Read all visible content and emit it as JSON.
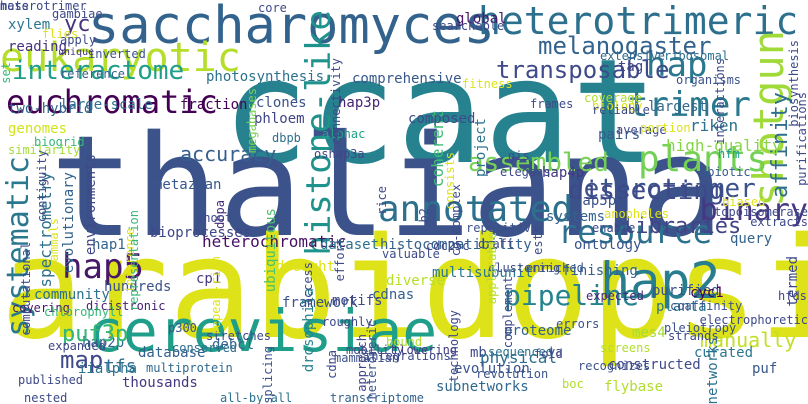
{
  "words": [
    {
      "text": "ccaat",
      "color": "#26828e"
    },
    {
      "text": "thaliana",
      "color": "#3b528b"
    },
    {
      "text": "arabidopsis",
      "color": "#dde318"
    },
    {
      "text": "saccharomyces",
      "color": "#33638d"
    },
    {
      "text": "cerevisiae",
      "color": "#1f9e89"
    },
    {
      "text": "heterotrimeric",
      "color": "#2d708e"
    },
    {
      "text": "eukaryotic",
      "color": "#b5de2b"
    },
    {
      "text": "euchromatic",
      "color": "#440154"
    },
    {
      "text": "interactome",
      "color": "#1f9e89"
    },
    {
      "text": "hap5",
      "color": "#48186a"
    },
    {
      "text": "hap2",
      "color": "#287d8e"
    },
    {
      "text": "hap",
      "color": "#2a788e"
    },
    {
      "text": "trimer",
      "color": "#2a788e"
    },
    {
      "text": "melanogaster",
      "color": "#33638d"
    },
    {
      "text": "transposable",
      "color": "#3e4a89"
    },
    {
      "text": "shotgun",
      "color": "#a0da39"
    },
    {
      "text": "annotated",
      "color": "#2d708e"
    },
    {
      "text": "resource",
      "color": "#2c728e"
    },
    {
      "text": "plants",
      "color": "#73d056"
    },
    {
      "text": "pipeline",
      "color": "#25838e"
    },
    {
      "text": "binary",
      "color": "#453781"
    },
    {
      "text": "heterotrimer",
      "color": "#3b528b"
    },
    {
      "text": "assembled",
      "color": "#75d054"
    },
    {
      "text": "systematic",
      "color": "#2a788e"
    },
    {
      "text": "histone-like",
      "color": "#20928c"
    },
    {
      "text": "heterochromatic",
      "color": "#471063"
    },
    {
      "text": "accuracy",
      "color": "#355f8d"
    },
    {
      "text": "libraries",
      "color": "#414487"
    },
    {
      "text": "puf3p",
      "color": "#35b779"
    },
    {
      "text": "map",
      "color": "#3e4989"
    },
    {
      "text": "manually",
      "color": "#c2df23"
    },
    {
      "text": "affinity",
      "color": "#2e6f8e"
    },
    {
      "text": "hap3p",
      "color": "#482475"
    },
    {
      "text": "clones",
      "color": "#3b528b"
    },
    {
      "text": "phloem",
      "color": "#414487"
    },
    {
      "text": "dbpb",
      "color": "#2d708e"
    },
    {
      "text": "alphac",
      "color": "#20a386"
    },
    {
      "text": "oshap3a",
      "color": "#404688"
    },
    {
      "text": "yc",
      "color": "#46337e"
    },
    {
      "text": "riken",
      "color": "#2c728e"
    },
    {
      "text": "high-quality",
      "color": "#86d549"
    },
    {
      "text": "largest",
      "color": "#31688e"
    },
    {
      "text": "pairs",
      "color": "#375b8d"
    },
    {
      "text": "coherent",
      "color": "#3dbc74"
    },
    {
      "text": "project",
      "color": "#2c738e"
    },
    {
      "text": "composed",
      "color": "#3e4a89"
    },
    {
      "text": "photosynthesis",
      "color": "#2c728e"
    },
    {
      "text": "comprehensive",
      "color": "#38588c"
    },
    {
      "text": "megabases",
      "color": "#7ad151"
    },
    {
      "text": "fraction",
      "color": "#440154"
    },
    {
      "text": "genomes",
      "color": "#d2e21b"
    },
    {
      "text": "two-hybrid",
      "color": "#33638d"
    },
    {
      "text": "large-scale",
      "color": "#2e6e8e"
    },
    {
      "text": "reading",
      "color": "#46327e"
    },
    {
      "text": "inverted",
      "color": "#3b528b"
    },
    {
      "text": "unique",
      "color": "#46337e"
    },
    {
      "text": "xylem",
      "color": "#2a778e"
    },
    {
      "text": "reference",
      "color": "#355f8d"
    },
    {
      "text": "global",
      "color": "#481769"
    },
    {
      "text": "tag",
      "color": "#404688"
    },
    {
      "text": "organisms",
      "color": "#3b528b"
    },
    {
      "text": "ribosomal",
      "color": "#2d708e"
    },
    {
      "text": "extensive",
      "color": "#31688e"
    },
    {
      "text": "spectrometry",
      "color": "#2d708e"
    },
    {
      "text": "evolutionary",
      "color": "#33638d"
    },
    {
      "text": "metazoan",
      "color": "#38598c"
    },
    {
      "text": "bioprocesses",
      "color": "#3f4788"
    },
    {
      "text": "dbpa",
      "color": "#472d7b"
    },
    {
      "text": "ubiquitous",
      "color": "#4ac16d"
    },
    {
      "text": "dataset",
      "color": "#2c728e"
    },
    {
      "text": "histocompatibility",
      "color": "#33638d"
    },
    {
      "text": "hap4p",
      "color": "#453781"
    },
    {
      "text": "hap5p",
      "color": "#3b528b"
    },
    {
      "text": "systems",
      "color": "#34618d"
    },
    {
      "text": "ontology",
      "color": "#3a538b"
    },
    {
      "text": "finishing",
      "color": "#33638d"
    },
    {
      "text": "purified",
      "color": "#3b528b"
    },
    {
      "text": "query",
      "color": "#33638d"
    },
    {
      "text": "planta",
      "color": "#2a778e"
    },
    {
      "text": "cyc1",
      "color": "#440154"
    },
    {
      "text": "hfm",
      "color": "#1fa088"
    },
    {
      "text": "abiotic",
      "color": "#375b8d"
    },
    {
      "text": "hap1",
      "color": "#32648e"
    },
    {
      "text": "shoot",
      "color": "#3e4a89"
    },
    {
      "text": "drought",
      "color": "#dde318"
    },
    {
      "text": "framework",
      "color": "#3b528b"
    },
    {
      "text": "community",
      "color": "#2d708e"
    },
    {
      "text": "hundreds",
      "color": "#3a538b"
    },
    {
      "text": "cp1",
      "color": "#443a83"
    },
    {
      "text": "dicistronic",
      "color": "#482173"
    },
    {
      "text": "cdnas",
      "color": "#34618d"
    },
    {
      "text": "diverse",
      "color": "#b8de29"
    },
    {
      "text": "multisubunit",
      "color": "#2a788e"
    },
    {
      "text": "cdc25c",
      "color": "#3e4989"
    },
    {
      "text": "hap2p",
      "color": "#32648e"
    },
    {
      "text": "p300",
      "color": "#3a538b"
    },
    {
      "text": "iialpha",
      "color": "#2c728e"
    },
    {
      "text": "database",
      "color": "#34618d"
    },
    {
      "text": "multiprotein",
      "color": "#31688e"
    },
    {
      "text": "debcl",
      "color": "#32648e"
    },
    {
      "text": "puf3p",
      "color": "#35b779"
    },
    {
      "text": "drosophila",
      "color": "#26828e"
    },
    {
      "text": "heteromeric",
      "color": "#3b528b"
    },
    {
      "text": "motifs",
      "color": "#3e4989"
    },
    {
      "text": "mb",
      "color": "#3e4989"
    },
    {
      "text": "physical",
      "color": "#2e6e8e"
    },
    {
      "text": "proteome",
      "color": "#34618d"
    },
    {
      "text": "mes4",
      "color": "#a5db36"
    },
    {
      "text": "curated",
      "color": "#2a778e"
    },
    {
      "text": "networks",
      "color": "#2c728e"
    },
    {
      "text": "puf",
      "color": "#39568c"
    },
    {
      "text": "hfds",
      "color": "#414487"
    },
    {
      "text": "tfs",
      "color": "#2e6e8e"
    },
    {
      "text": "thousands",
      "color": "#453781"
    },
    {
      "text": "subnetworks",
      "color": "#31688e"
    },
    {
      "text": "evolution",
      "color": "#3b528b"
    },
    {
      "text": "flybase",
      "color": "#b2dd2d"
    },
    {
      "text": "constructed",
      "color": "#3e4a89"
    },
    {
      "text": "covering",
      "color": "#48186a"
    },
    {
      "text": "published",
      "color": "#3e4989"
    },
    {
      "text": "nested",
      "color": "#3e4989"
    },
    {
      "text": "all-by-all",
      "color": "#2c728e"
    },
    {
      "text": "transcriptome",
      "color": "#33638d"
    },
    {
      "text": "revolution",
      "color": "#3a538b"
    },
    {
      "text": "conserved",
      "color": "#2d708e"
    },
    {
      "text": "expanded",
      "color": "#3f4788"
    },
    {
      "text": "stretches",
      "color": "#3e4989"
    },
    {
      "text": "splicing",
      "color": "#3b528b"
    },
    {
      "text": "mammalian",
      "color": "#3b528b"
    },
    {
      "text": "approach",
      "color": "#414487"
    },
    {
      "text": "mobility",
      "color": "#3e4a89"
    },
    {
      "text": "flowering",
      "color": "#443a83"
    },
    {
      "text": "sequenced",
      "color": "#2c728e"
    },
    {
      "text": "recognizes",
      "color": "#3b528b"
    },
    {
      "text": "screens",
      "color": "#b2dd2d"
    },
    {
      "text": "expected",
      "color": "#482677"
    },
    {
      "text": "termed",
      "color": "#3e4989"
    },
    {
      "text": "electrophoretic",
      "color": "#3e4989"
    },
    {
      "text": "errors",
      "color": "#3b528b"
    },
    {
      "text": "coaffinity",
      "color": "#3b528b"
    },
    {
      "text": "pleiotropy",
      "color": "#3b528b"
    },
    {
      "text": "strands",
      "color": "#3e4989"
    },
    {
      "text": "technology",
      "color": "#3e4989"
    },
    {
      "text": "complement",
      "color": "#3e4989"
    },
    {
      "text": "clustering",
      "color": "#3e4989"
    },
    {
      "text": "enriched",
      "color": "#3b528b"
    },
    {
      "text": "draft",
      "color": "#3e4989"
    },
    {
      "text": "repetitive",
      "color": "#3b528b"
    },
    {
      "text": "valuable",
      "color": "#3e4989"
    },
    {
      "text": "rice",
      "color": "#3e4989"
    },
    {
      "text": "effort",
      "color": "#3e4989"
    },
    {
      "text": "environments",
      "color": "#3e4989"
    },
    {
      "text": "similarity",
      "color": "#a5db36"
    },
    {
      "text": "biogrid",
      "color": "#35b779"
    },
    {
      "text": "flies",
      "color": "#dde318"
    },
    {
      "text": "gambiae",
      "color": "#3e4989"
    },
    {
      "text": "apply",
      "color": "#3e4989"
    },
    {
      "text": "set",
      "color": "#35b779"
    },
    {
      "text": "core",
      "color": "#3e4989"
    },
    {
      "text": "searchable",
      "color": "#3e4989"
    },
    {
      "text": "fitness",
      "color": "#dde318"
    },
    {
      "text": "frames",
      "color": "#3e4989"
    },
    {
      "text": "coverage",
      "color": "#b2dd2d"
    },
    {
      "text": "biology",
      "color": "#dde318"
    },
    {
      "text": "reliable",
      "color": "#3e4989"
    },
    {
      "text": "average",
      "color": "#3e4989"
    },
    {
      "text": "portion",
      "color": "#dde318"
    },
    {
      "text": "biosynthesis",
      "color": "#3e4989"
    },
    {
      "text": "purifications",
      "color": "#3e4989"
    },
    {
      "text": "topoisomerase",
      "color": "#3e4989"
    },
    {
      "text": "extracts",
      "color": "#3e4989"
    },
    {
      "text": "biased",
      "color": "#dde318"
    },
    {
      "text": "elegans",
      "color": "#3e4989"
    },
    {
      "text": "gis",
      "color": "#3e4989"
    },
    {
      "text": "ests",
      "color": "#3e4989"
    },
    {
      "text": "anopheles",
      "color": "#dde318"
    },
    {
      "text": "enable",
      "color": "#3e4989"
    },
    {
      "text": "b2",
      "color": "#3e4989"
    },
    {
      "text": "co-complex",
      "color": "#3e4989"
    },
    {
      "text": "connectivity",
      "color": "#3e4989"
    },
    {
      "text": "contiguity",
      "color": "#3e4989"
    },
    {
      "text": "inference",
      "color": "#dde318"
    },
    {
      "text": "representation",
      "color": "#35b779"
    },
    {
      "text": "repeat-rich",
      "color": "#dde318"
    },
    {
      "text": "computational",
      "color": "#3e4989"
    },
    {
      "text": "chlorophyll",
      "color": "#35b779"
    },
    {
      "text": "access",
      "color": "#3e4989"
    },
    {
      "text": "roughly",
      "color": "#3e4989"
    },
    {
      "text": "integrations",
      "color": "#3e4989"
    },
    {
      "text": "fold",
      "color": "#3e4989"
    },
    {
      "text": "ya",
      "color": "#3e4989"
    },
    {
      "text": "bound",
      "color": "#b2dd2d"
    },
    {
      "text": "boc",
      "color": "#b2dd2d"
    },
    {
      "text": "cdna",
      "color": "#3e4989"
    },
    {
      "text": "applicable",
      "color": "#b2dd2d"
    },
    {
      "text": "consists",
      "color": "#dde318"
    },
    {
      "text": "interactions",
      "color": "#3e4989"
    },
    {
      "text": "dissecting",
      "color": "#3e4989"
    },
    {
      "text": "mammals",
      "color": "#dde318"
    },
    {
      "text": "heterotrimer",
      "color": "#3e4989"
    },
    {
      "text": "mass",
      "color": "#3e4989"
    }
  ]
}
